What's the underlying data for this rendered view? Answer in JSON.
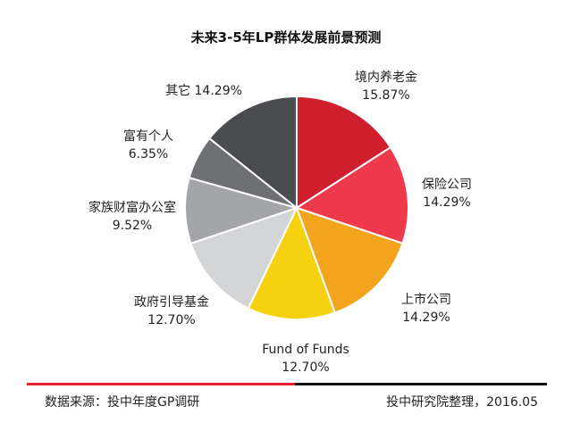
{
  "chart_data": {
    "type": "pie",
    "title": "未来3-5年LP群体发展前景预测",
    "slices": [
      {
        "label": "境内养老金",
        "value_text": "15.87%",
        "value": 15.87,
        "color": "#cf1f2e"
      },
      {
        "label": "保险公司",
        "value_text": "14.29%",
        "value": 14.29,
        "color": "#ef3a4d"
      },
      {
        "label": "上市公司",
        "value_text": "14.29%",
        "value": 14.29,
        "color": "#f2a51c"
      },
      {
        "label": "Fund of Funds",
        "value_text": "12.70%",
        "value": 12.7,
        "color": "#f6d10f"
      },
      {
        "label": "政府引导基金",
        "value_text": "12.70%",
        "value": 12.7,
        "color": "#d3d4d6"
      },
      {
        "label": "家族财富办公室",
        "value_text": "9.52%",
        "value": 9.52,
        "color": "#a4a5a8"
      },
      {
        "label": "富有个人",
        "value_text": "6.35%",
        "value": 6.35,
        "color": "#6f7073"
      },
      {
        "label": "其它",
        "value_text": "14.29%",
        "value": 14.29,
        "color": "#4b4c4f"
      }
    ]
  },
  "footer": {
    "source": "数据来源：投中年度GP调研",
    "credit": "投中研究院整理，2016.05"
  }
}
